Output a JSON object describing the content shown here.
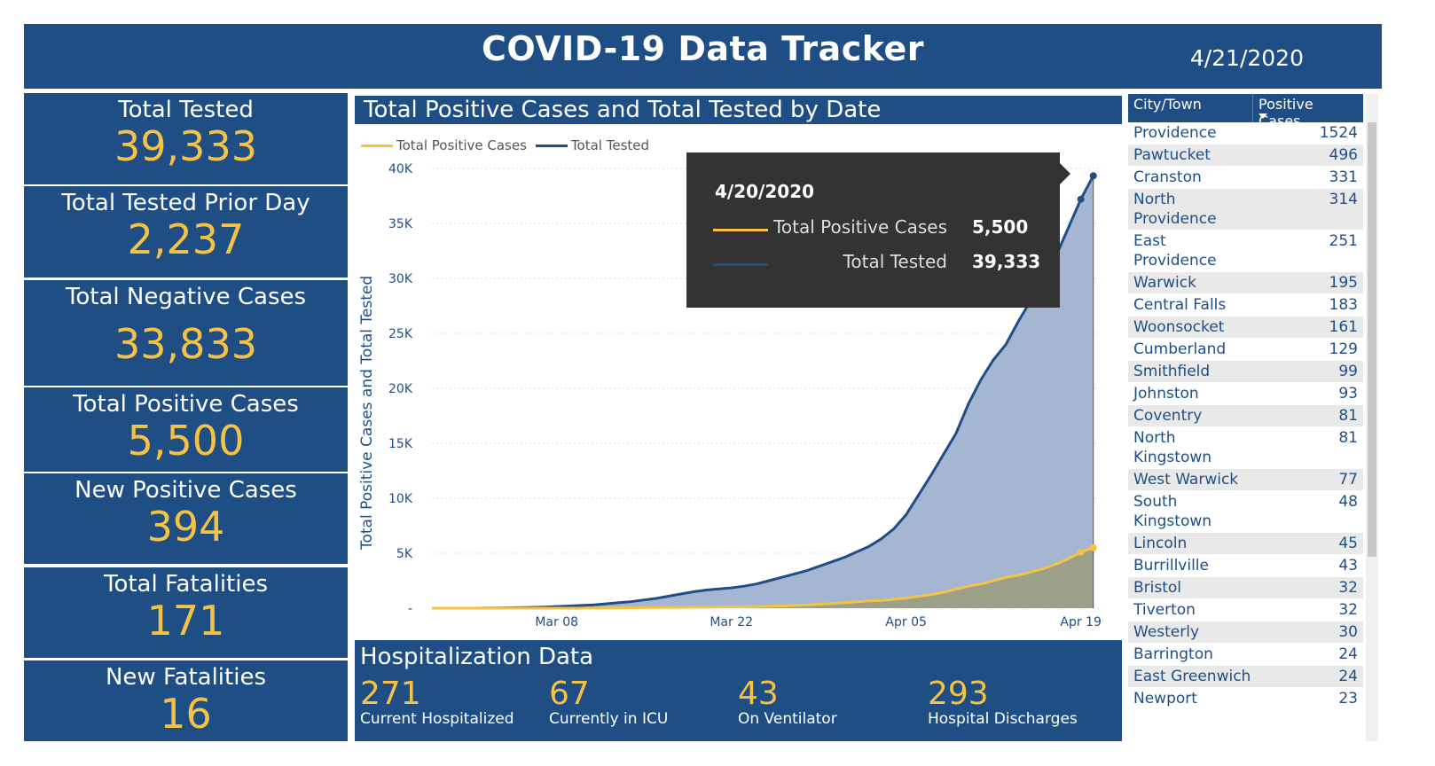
{
  "header": {
    "title": "COVID-19 Data Tracker",
    "date": "4/21/2020"
  },
  "tiles": [
    {
      "label": "Total Tested",
      "value": "39,333"
    },
    {
      "label": "Total Tested Prior Day",
      "value": "2,237"
    },
    {
      "label": "Total Negative Cases",
      "value": "33,833"
    },
    {
      "label": "Total Positive Cases",
      "value": "5,500"
    },
    {
      "label": "New Positive Cases",
      "value": "394"
    },
    {
      "label": "Total Fatalities",
      "value": "171"
    },
    {
      "label": "New Fatalities",
      "value": "16"
    }
  ],
  "chart_data": {
    "type": "area",
    "title": "Total Positive Cases and Total Tested by Date",
    "ylabel": "Total Positive Cases and Total Tested",
    "xlabel": "",
    "start_date": "2020-02-27",
    "xticks": [
      {
        "label": "Mar 08",
        "day": 10
      },
      {
        "label": "Mar 22",
        "day": 24
      },
      {
        "label": "Apr 05",
        "day": 38
      },
      {
        "label": "Apr 19",
        "day": 52
      }
    ],
    "yticks": [
      "-",
      "5K",
      "10K",
      "15K",
      "20K",
      "25K",
      "30K",
      "35K",
      "40K"
    ],
    "ylim": [
      0,
      40000
    ],
    "legend": "top-left",
    "series": [
      {
        "name": "Total Positive Cases",
        "color": "#f6c244",
        "values": [
          0,
          0,
          0,
          0,
          0,
          0,
          0,
          0,
          0,
          0,
          0,
          0,
          0,
          10,
          20,
          30,
          40,
          50,
          60,
          70,
          80,
          90,
          100,
          110,
          120,
          130,
          150,
          170,
          200,
          240,
          290,
          350,
          410,
          490,
          570,
          660,
          710,
          810,
          920,
          1080,
          1230,
          1450,
          1730,
          2000,
          2200,
          2500,
          2800,
          3000,
          3300,
          3600,
          4000,
          4500,
          5100,
          5500
        ]
      },
      {
        "name": "Total Tested",
        "color": "#1f4e87",
        "values": [
          0,
          0,
          0,
          0,
          10,
          20,
          30,
          50,
          70,
          100,
          150,
          200,
          250,
          300,
          400,
          500,
          600,
          750,
          900,
          1100,
          1300,
          1500,
          1650,
          1750,
          1850,
          2000,
          2200,
          2500,
          2800,
          3100,
          3400,
          3800,
          4200,
          4600,
          5100,
          5600,
          6300,
          7200,
          8500,
          10300,
          12100,
          14000,
          15900,
          18600,
          20800,
          22600,
          24000,
          26100,
          28000,
          30000,
          32000,
          34600,
          37200,
          39333
        ]
      }
    ]
  },
  "tooltip": {
    "date": "4/20/2020",
    "rows": [
      {
        "name": "Total Positive Cases",
        "value": "5,500",
        "color": "#f6c244"
      },
      {
        "name": "Total Tested",
        "value": "39,333",
        "color": "#1f4e87"
      }
    ]
  },
  "hospitalization": {
    "title": "Hospitalization Data",
    "stats": [
      {
        "value": "271",
        "label": "Current Hospitalized"
      },
      {
        "value": "67",
        "label": "Currently in ICU"
      },
      {
        "value": "43",
        "label": "On Ventilator"
      },
      {
        "value": "293",
        "label": "Hospital Discharges"
      }
    ]
  },
  "table": {
    "headers": [
      "City/Town",
      "Positive Cases"
    ],
    "rows": [
      [
        "Providence",
        "1524"
      ],
      [
        "Pawtucket",
        "496"
      ],
      [
        "Cranston",
        "331"
      ],
      [
        "North Providence",
        "314"
      ],
      [
        "East Providence",
        "251"
      ],
      [
        "Warwick",
        "195"
      ],
      [
        "Central Falls",
        "183"
      ],
      [
        "Woonsocket",
        "161"
      ],
      [
        "Cumberland",
        "129"
      ],
      [
        "Smithfield",
        "99"
      ],
      [
        "Johnston",
        "93"
      ],
      [
        "Coventry",
        "81"
      ],
      [
        "North Kingstown",
        "81"
      ],
      [
        "West Warwick",
        "77"
      ],
      [
        "South Kingstown",
        "48"
      ],
      [
        "Lincoln",
        "45"
      ],
      [
        "Burrillville",
        "43"
      ],
      [
        "Bristol",
        "32"
      ],
      [
        "Tiverton",
        "32"
      ],
      [
        "Westerly",
        "30"
      ],
      [
        "Barrington",
        "24"
      ],
      [
        "East Greenwich",
        "24"
      ],
      [
        "Newport",
        "23"
      ]
    ]
  }
}
